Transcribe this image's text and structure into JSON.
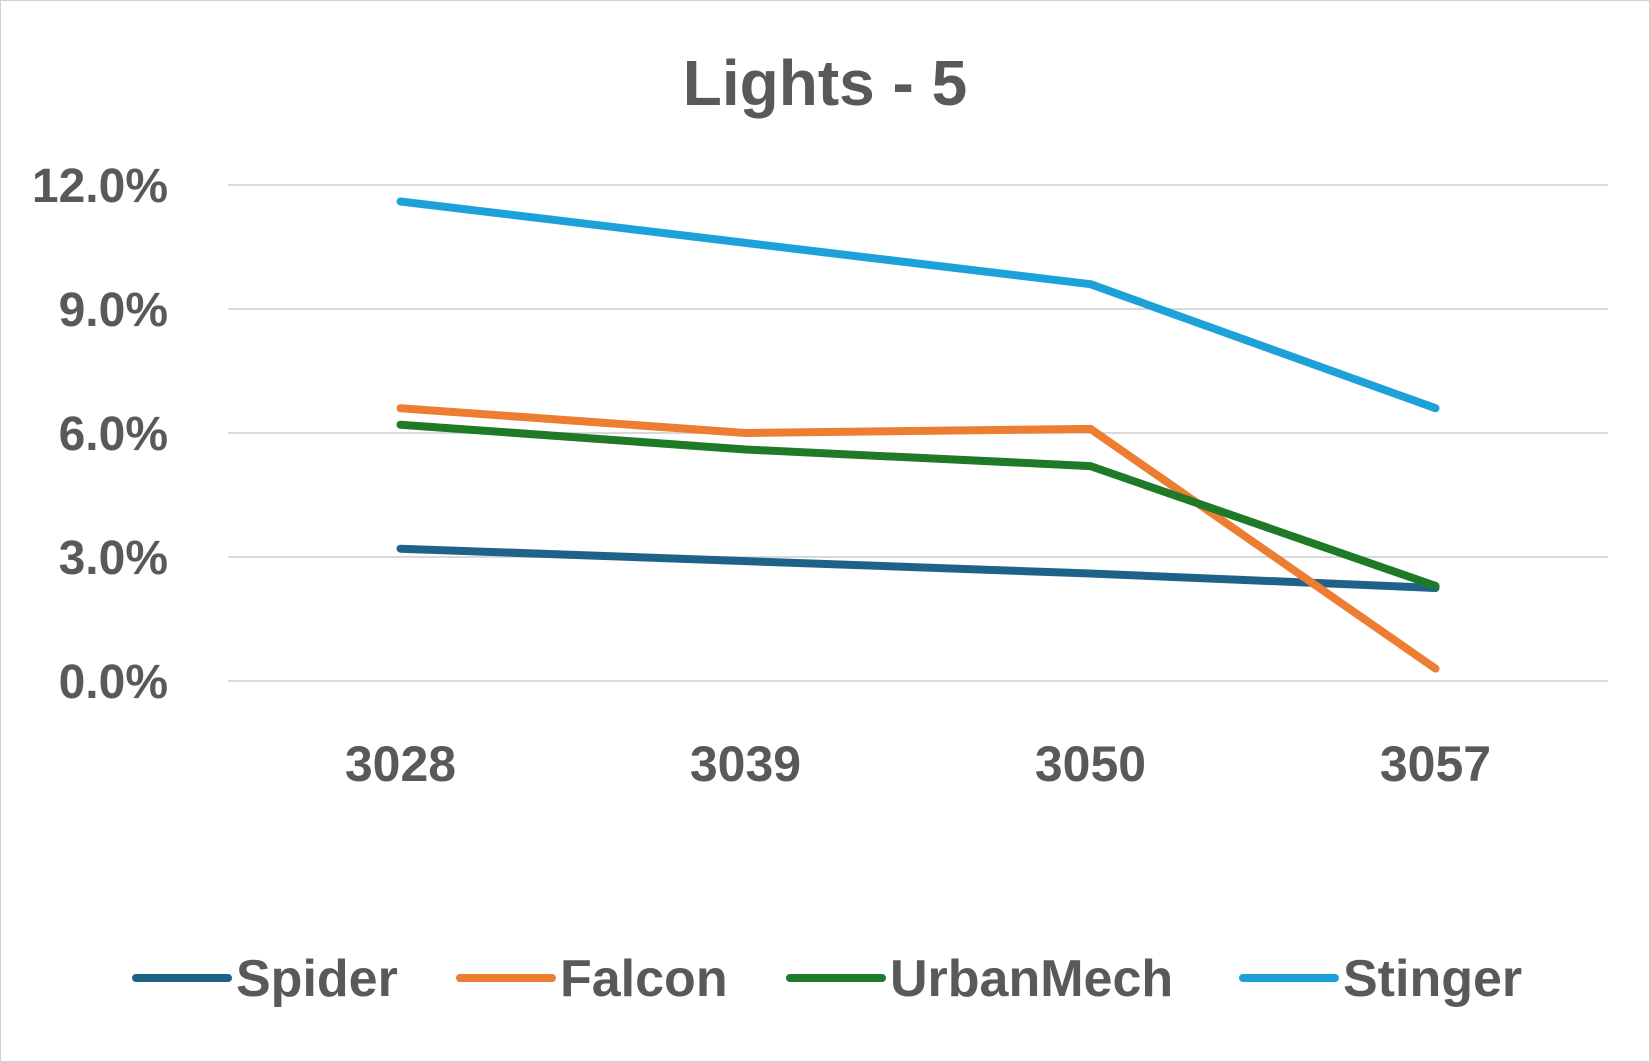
{
  "chart_data": {
    "type": "line",
    "title": "Lights - 5",
    "xlabel": "",
    "ylabel": "",
    "categories": [
      "3028",
      "3039",
      "3050",
      "3057"
    ],
    "ylim": [
      0,
      0.12
    ],
    "yticks": [
      0,
      0.03,
      0.06,
      0.09,
      0.12
    ],
    "ytick_labels": [
      "0.0%",
      "3.0%",
      "6.0%",
      "9.0%",
      "12.0%"
    ],
    "grid": true,
    "legend_position": "bottom",
    "series": [
      {
        "name": "Spider",
        "color": "#1f6287",
        "values": [
          0.032,
          0.029,
          0.026,
          0.0225
        ]
      },
      {
        "name": "Falcon",
        "color": "#ed7d31",
        "values": [
          0.066,
          0.06,
          0.061,
          0.003
        ]
      },
      {
        "name": "UrbanMech",
        "color": "#1e7a26",
        "values": [
          0.062,
          0.056,
          0.052,
          0.023
        ]
      },
      {
        "name": "Stinger",
        "color": "#1ca2d8",
        "values": [
          0.116,
          0.106,
          0.096,
          0.066
        ]
      }
    ]
  }
}
